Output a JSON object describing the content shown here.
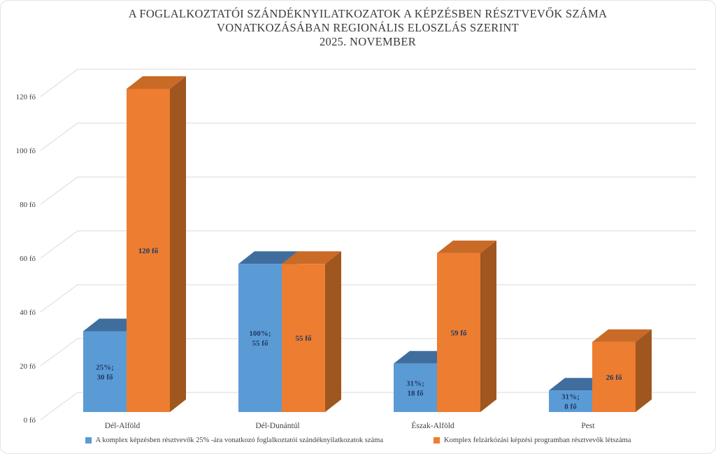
{
  "title": {
    "line1": "A FOGLALKOZTATÓI SZÁNDÉKNYILATKOZATOK A KÉPZÉSBEN RÉSZTVEVŐK  SZÁMA",
    "line2": "VONATKOZÁSÁBAN REGIONÁLIS ELOSZLÁS SZERINT",
    "line3": "2025. NOVEMBER"
  },
  "chart_data": {
    "type": "bar",
    "projection": "3d-clustered-column",
    "title": "A FOGLALKOZTATÓI SZÁNDÉKNYILATKOZATOK A KÉPZÉSBEN RÉSZTVEVŐK SZÁMA VONATKOZÁSÁBAN REGIONÁLIS ELOSZLÁS SZERINT 2025. NOVEMBER",
    "categories": [
      "Dél-Alföld",
      "Dél-Dunántúl",
      "Észak-Alföld",
      "Pest"
    ],
    "series": [
      {
        "name": "A  komplex képzésben résztvevők 25% -ára vonatkozó foglalkoztatói szándéknyilatkozatok száma",
        "values": [
          30,
          55,
          18,
          8
        ],
        "data_labels": [
          "25%;|30 fő",
          "100%;|55 fő",
          "31%;|18 fő",
          "31%;|8 fő"
        ],
        "color": "#5B9BD5",
        "top_color": "#3F6E9E",
        "side_color": "#34608C"
      },
      {
        "name": "Komplex felzárkózási képzési programban résztvevők létszáma",
        "values": [
          120,
          55,
          59,
          26
        ],
        "data_labels": [
          "120 fő",
          "55 fő",
          "59 fő",
          "26 fő"
        ],
        "color": "#ED7D31",
        "top_color": "#C96A26",
        "side_color": "#9F561F"
      }
    ],
    "xlabel": "",
    "ylabel": "",
    "ylim": [
      0,
      120
    ],
    "yticks": [
      0,
      20,
      40,
      60,
      80,
      100,
      120
    ],
    "ytick_labels": [
      "0 fő",
      "20 fő",
      "40 fő",
      "60 fő",
      "80 fő",
      "100 fő",
      "120 fő"
    ],
    "grid": true,
    "legend_position": "bottom",
    "colors": {
      "grid": "#D9D9D9",
      "axis_text": "#404040",
      "data_label_text": "#1F3864",
      "title_text": "#3A3A3A",
      "background": "#FFFFFF"
    }
  }
}
